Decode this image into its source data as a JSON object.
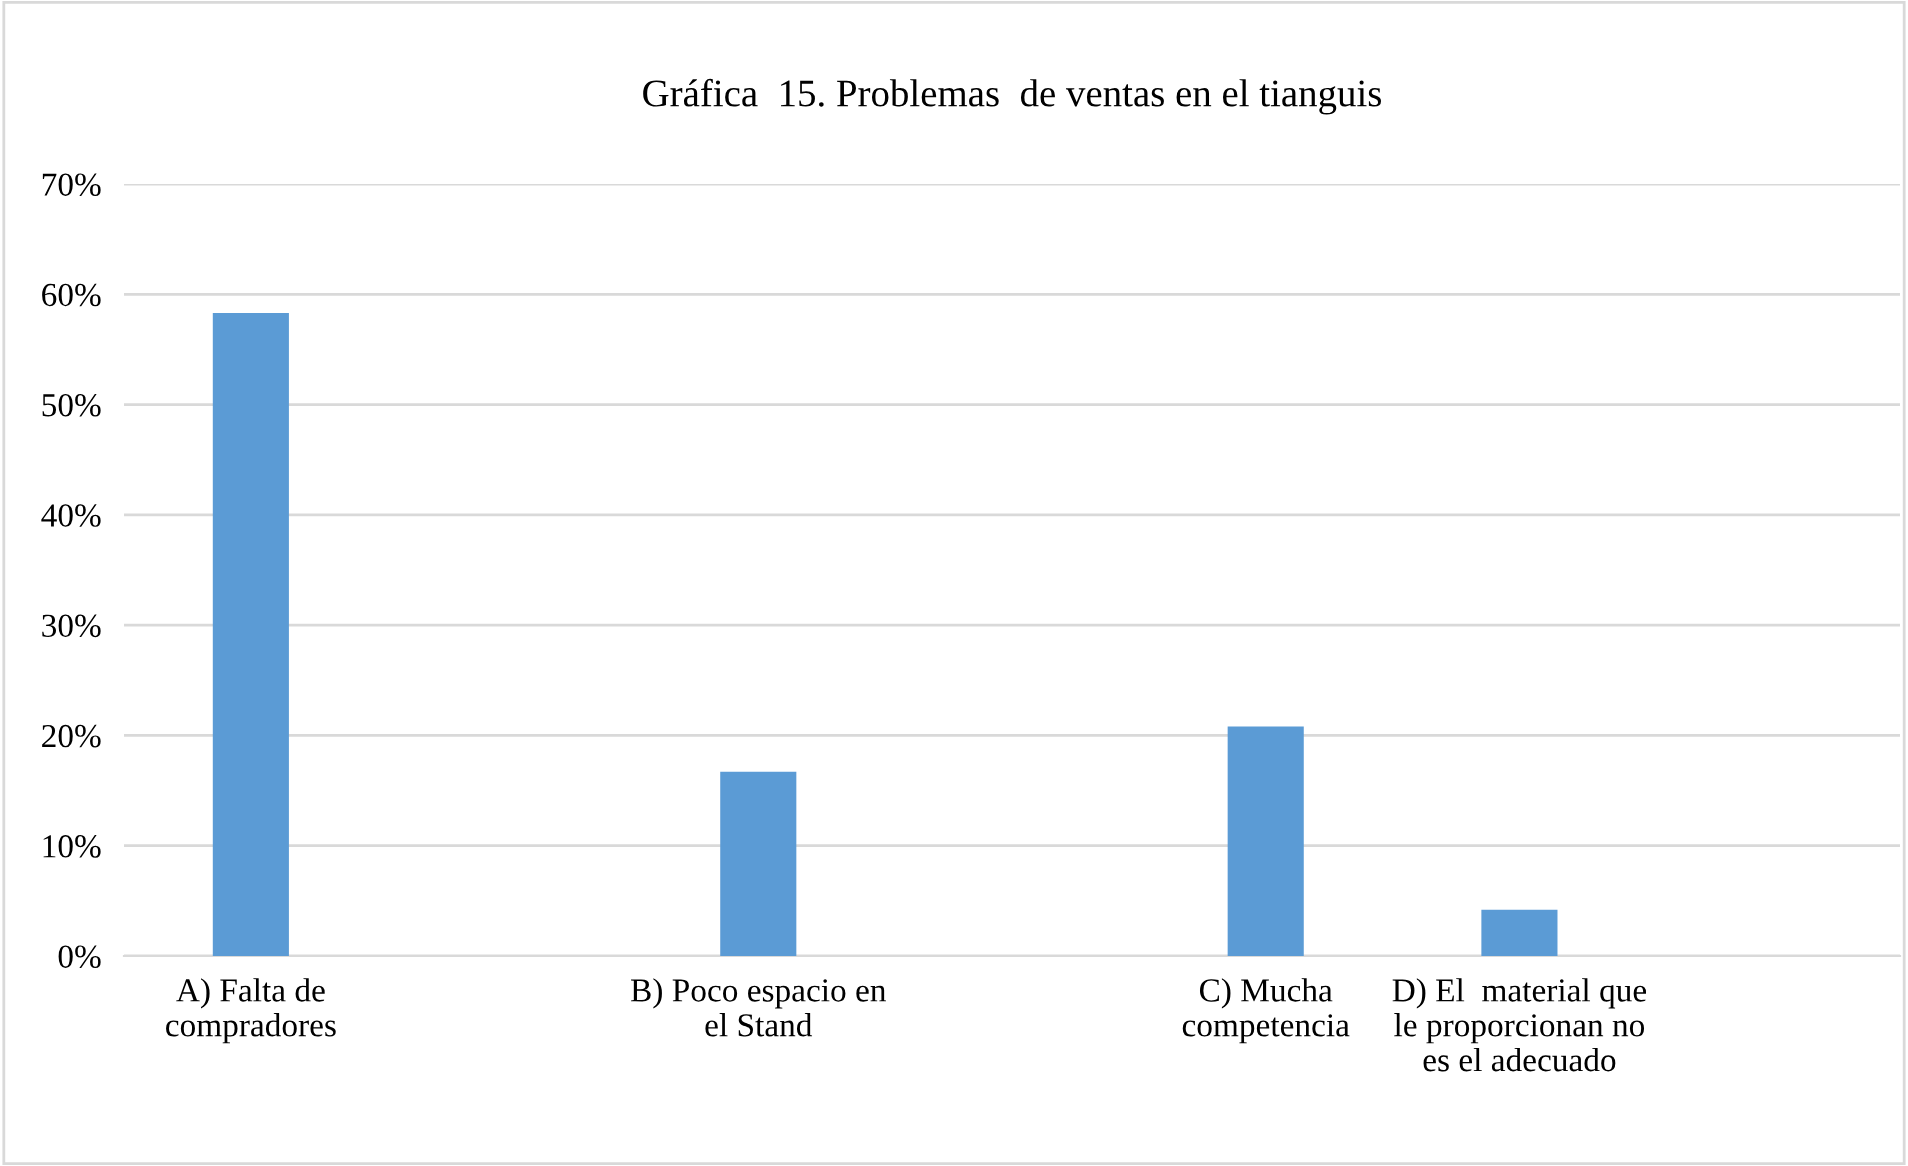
{
  "chart_data": {
    "type": "bar",
    "title": "Gráfica  15. Problemas  de ventas en el tianguis",
    "categories": [
      "A) Falta de\ncompradores",
      null,
      "B) Poco espacio en\nel Stand",
      null,
      "C) Mucha\ncompetencia",
      "D) El  material que\nle proporcionan no\nes el adecuado",
      null
    ],
    "values": [
      58.3,
      null,
      16.7,
      null,
      20.8,
      4.2,
      null
    ],
    "color": "#5b9bd5",
    "ylim": [
      0,
      70
    ],
    "yticks": [
      {
        "value": 0,
        "label": "0%"
      },
      {
        "value": 10,
        "label": "10%"
      },
      {
        "value": 20,
        "label": "20%"
      },
      {
        "value": 30,
        "label": "30%"
      },
      {
        "value": 40,
        "label": "40%"
      },
      {
        "value": 50,
        "label": "50%"
      },
      {
        "value": 60,
        "label": "60%"
      },
      {
        "value": 70,
        "label": "70%"
      }
    ],
    "grid": "y",
    "legend": false
  }
}
